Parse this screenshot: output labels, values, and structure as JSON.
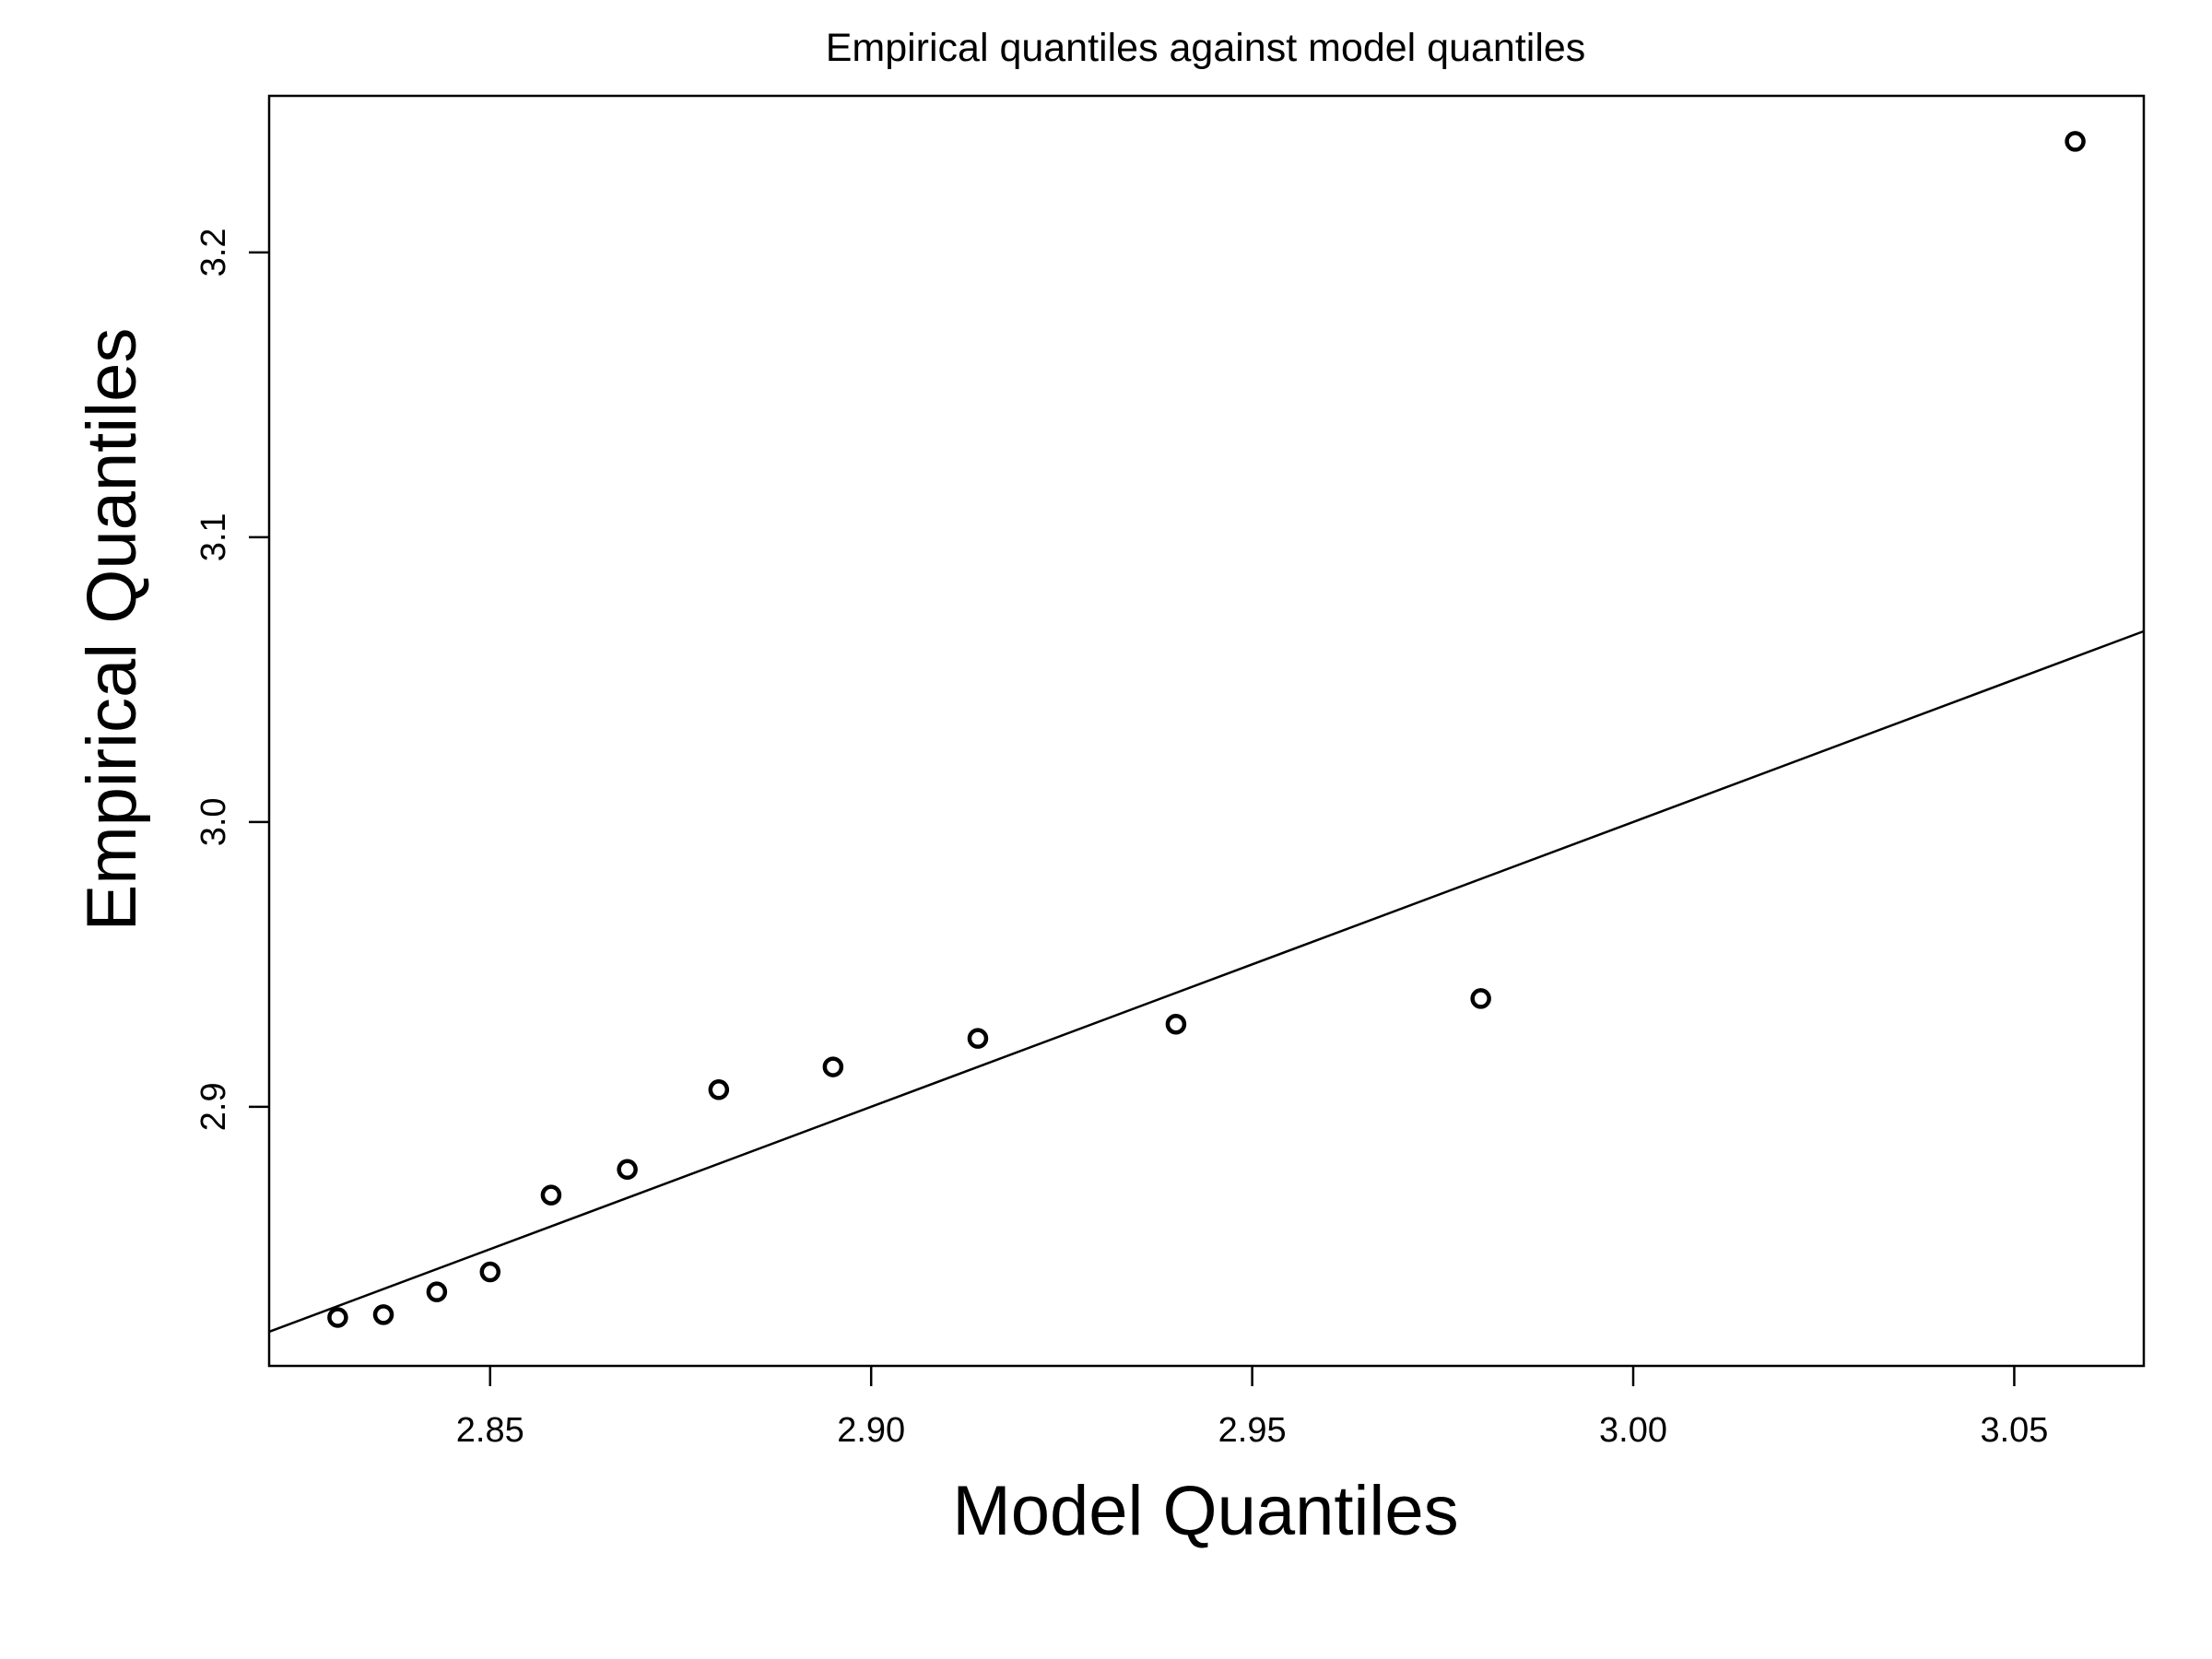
{
  "chart_data": {
    "type": "scatter",
    "title": "Empirical quantiles against model quantiles",
    "xlabel": "Model Quantiles",
    "ylabel": "Empirical Quantiles",
    "xlim": [
      2.821,
      3.067
    ],
    "ylim": [
      2.809,
      3.255
    ],
    "x_ticks": [
      {
        "value": 2.85,
        "label": "2.85"
      },
      {
        "value": 2.9,
        "label": "2.90"
      },
      {
        "value": 2.95,
        "label": "2.95"
      },
      {
        "value": 3.0,
        "label": "3.00"
      },
      {
        "value": 3.05,
        "label": "3.05"
      }
    ],
    "y_ticks": [
      {
        "value": 2.9,
        "label": "2.9"
      },
      {
        "value": 3.0,
        "label": "3.0"
      },
      {
        "value": 3.1,
        "label": "3.1"
      },
      {
        "value": 3.2,
        "label": "3.2"
      }
    ],
    "points": [
      {
        "x": 2.83,
        "y": 2.826
      },
      {
        "x": 2.836,
        "y": 2.827
      },
      {
        "x": 2.843,
        "y": 2.835
      },
      {
        "x": 2.85,
        "y": 2.842
      },
      {
        "x": 2.858,
        "y": 2.869
      },
      {
        "x": 2.868,
        "y": 2.878
      },
      {
        "x": 2.88,
        "y": 2.906
      },
      {
        "x": 2.895,
        "y": 2.914
      },
      {
        "x": 2.914,
        "y": 2.924
      },
      {
        "x": 2.94,
        "y": 2.929
      },
      {
        "x": 2.98,
        "y": 2.938
      },
      {
        "x": 3.058,
        "y": 3.239
      }
    ],
    "reference_line": {
      "intercept": 0,
      "slope": 1
    },
    "grid": false,
    "legend": "none",
    "colors": {
      "background": "#ffffff",
      "foreground": "#000000"
    }
  }
}
